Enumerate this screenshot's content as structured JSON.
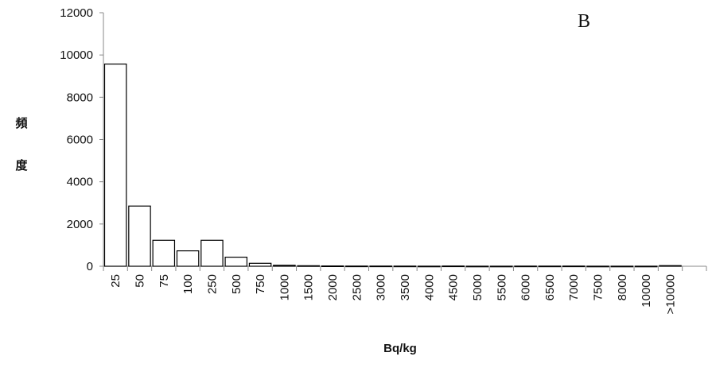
{
  "chart_data": {
    "type": "bar",
    "panel_label": "B",
    "title": "",
    "ylabel": "頻度",
    "ylabel_chars": [
      "頻",
      "度"
    ],
    "xlabel": "Bq/kg",
    "ylim": [
      0,
      12000
    ],
    "yticks": [
      "0",
      "2000",
      "4000",
      "6000",
      "8000",
      "10000",
      "12000"
    ],
    "categories": [
      "25",
      "50",
      "75",
      "100",
      "250",
      "500",
      "750",
      "1000",
      "1500",
      "2000",
      "2500",
      "3000",
      "3500",
      "4000",
      "4500",
      "5000",
      "5500",
      "6000",
      "6500",
      "7000",
      "7500",
      "8000",
      "10000",
      ">10000",
      ""
    ],
    "values": [
      9570,
      2850,
      1230,
      730,
      1230,
      430,
      140,
      50,
      25,
      15,
      10,
      10,
      8,
      5,
      12,
      4,
      4,
      8,
      8,
      10,
      4,
      4,
      4,
      30,
      0
    ],
    "bar_color": "#ffffff",
    "bar_edge_color": "#000000",
    "grid": false,
    "legend": false
  }
}
